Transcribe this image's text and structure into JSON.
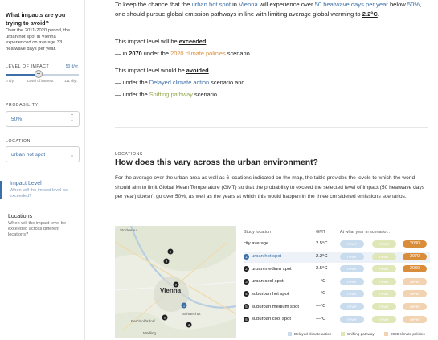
{
  "sidebar": {
    "title": "What impacts are you trying to avoid?",
    "description": "Over the 2011-2020 period, the urban hot spot in Vienna experienced on average 33 heatwave days per year.",
    "level_label": "LEVEL OF IMPACT",
    "level_value": "50 d/yr",
    "slider_fraction": 0.45,
    "slider_min": "0 d/yr",
    "slider_mid": "Level of interest",
    "slider_max": "111 d/yr",
    "probability_label": "PROBABILITY",
    "probability_value": "50%",
    "location_label": "LOCATION",
    "location_value": "urban hot spot",
    "nav": [
      {
        "title": "Impact Level",
        "sub": "When will the impact level be exceeded?"
      },
      {
        "title": "Locations",
        "sub": "When will the impact level be exceeded across different locations?"
      }
    ],
    "chevron": "⌃⌄"
  },
  "intro": {
    "t1": "To keep the chance that the",
    "loc": "urban hot spot",
    "t2": "in",
    "city": "Vienna",
    "t3": "will experience over",
    "num": "50",
    "metric": "heatwave days per year",
    "t4": "below",
    "pct": "50%",
    "t5": ", one should pursue global emission pathways in line with limiting average global warming to",
    "gmt": "2.2°C",
    "t6": "."
  },
  "exceeded": {
    "t1": "This impact level will be",
    "word": "exceeded",
    "dash": "—",
    "in": "in",
    "year": "2070",
    "under": "under the",
    "scenario": "2020 climate policies",
    "scen_word": "scenario."
  },
  "avoided": {
    "t1": "This impact level would be",
    "word": "avoided",
    "dash": "—",
    "under": "under the",
    "scenario1": "Delayed climate action",
    "mid": "scenario and",
    "under2": "under the",
    "scenario2": "Shifting pathway",
    "end": "scenario."
  },
  "section": {
    "label": "LOCATIONS",
    "title": "How does this vary across the urban environment?",
    "body": "For the average over the urban area as well as 6 locations indicated on the map, the table provides the levels to which the world should aim to limit Global Mean Temperature (GMT) so that the probability to exceed the selected level of impact (50 heatwave days per year) doesn't go over 50%, as well as the years at which this would happen in the three considered emissions scenarios."
  },
  "map": {
    "labels": {
      "stockerau": "Stockerau",
      "vienna": "Vienna",
      "schwechat": "Schwechat",
      "perchtoldsdorf": "Perchtoldsdorf",
      "modling": "Mödling"
    }
  },
  "table": {
    "headers": {
      "location": "Study location",
      "gmt": "GMT",
      "year": "At what year in scenario..."
    },
    "rows": [
      {
        "num": "",
        "name": "city average",
        "gmt": "2.5°C",
        "delayed": "never",
        "shifting": "never",
        "policies": "2080",
        "policies_solid": true
      },
      {
        "num": "1",
        "name": "urban hot spot",
        "gmt": "2.2°C",
        "delayed": "never",
        "shifting": "never",
        "policies": "2070",
        "policies_solid": true,
        "active": true
      },
      {
        "num": "2",
        "name": "urban medium spot",
        "gmt": "2.5°C",
        "delayed": "never",
        "shifting": "never",
        "policies": "2080",
        "policies_solid": true
      },
      {
        "num": "3",
        "name": "urban cool spot",
        "gmt": "—°C",
        "delayed": "never",
        "shifting": "never",
        "policies": "never",
        "policies_solid": false
      },
      {
        "num": "4",
        "name": "suburban hot spot",
        "gmt": "—°C",
        "delayed": "never",
        "shifting": "never",
        "policies": "never",
        "policies_solid": false
      },
      {
        "num": "5",
        "name": "suburban medium spot",
        "gmt": "—°C",
        "delayed": "never",
        "shifting": "never",
        "policies": "never",
        "policies_solid": false
      },
      {
        "num": "6",
        "name": "suburban cool spot",
        "gmt": "—°C",
        "delayed": "never",
        "shifting": "never",
        "policies": "never",
        "policies_solid": false
      }
    ],
    "legend": {
      "delayed": "Delayed climate action",
      "shifting": "Shifting pathway",
      "policies": "2020 climate policies"
    }
  },
  "colors": {
    "accent": "#3b6fa8",
    "orange": "#d98d3a",
    "green": "#94a84d",
    "delayed": "#c9dcee",
    "shifting": "#dfe6b8",
    "policies": "#f2d3b1"
  }
}
